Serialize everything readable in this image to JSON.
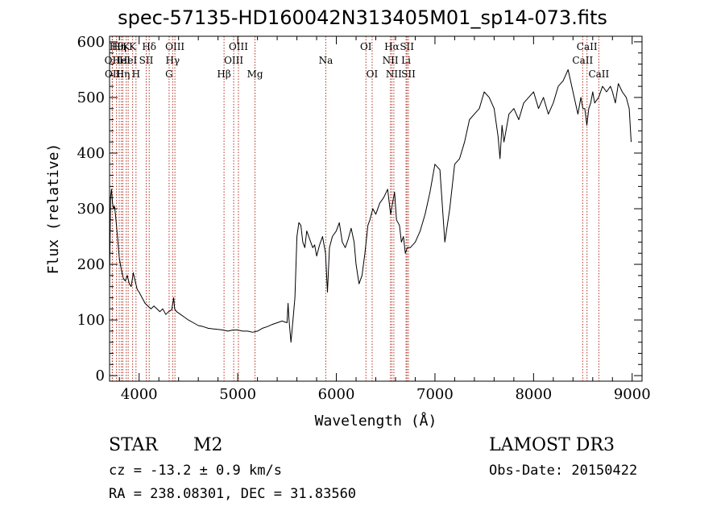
{
  "title": "spec-57135-HD160042N313405M01_sp14-073.fits",
  "info": {
    "class_label": "STAR",
    "subclass_label": "M2",
    "survey": "LAMOST DR3",
    "cz": "cz = -13.2 ± 0.9 km/s",
    "obs_date": "Obs-Date: 20150422",
    "coords": "RA = 238.08301, DEC =  31.83560"
  },
  "chart_data": {
    "type": "line",
    "title": "spec-57135-HD160042N313405M01_sp14-073.fits",
    "xlabel": "Wavelength (Å)",
    "ylabel": "Flux (relative)",
    "xlim": [
      3700,
      9100
    ],
    "ylim": [
      -10,
      610
    ],
    "xticks": [
      4000,
      5000,
      6000,
      7000,
      8000,
      9000
    ],
    "yticks": [
      0,
      100,
      200,
      300,
      400,
      500,
      600
    ],
    "line_color": "#000000",
    "marker_color": "#b03020",
    "series": [
      {
        "x": [
          3700,
          3710,
          3720,
          3730,
          3740,
          3750,
          3760,
          3770,
          3780,
          3790,
          3800,
          3820,
          3840,
          3860,
          3880,
          3900,
          3920,
          3940,
          3960,
          3980,
          4000,
          4030,
          4060,
          4090,
          4120,
          4150,
          4180,
          4210,
          4240,
          4270,
          4300,
          4330,
          4350,
          4360,
          4380,
          4420,
          4460,
          4500,
          4550,
          4600,
          4650,
          4700,
          4750,
          4800,
          4850,
          4900,
          4950,
          5000,
          5050,
          5100,
          5150,
          5200,
          5250,
          5300,
          5350,
          5400,
          5450,
          5500,
          5510,
          5520,
          5540,
          5560,
          5580,
          5600,
          5620,
          5640,
          5660,
          5680,
          5700,
          5720,
          5740,
          5760,
          5780,
          5800,
          5830,
          5860,
          5890,
          5910,
          5930,
          5960,
          6000,
          6030,
          6060,
          6090,
          6120,
          6150,
          6180,
          6200,
          6230,
          6260,
          6290,
          6320,
          6340,
          6370,
          6400,
          6440,
          6480,
          6520,
          6550,
          6570,
          6590,
          6610,
          6640,
          6660,
          6680,
          6700,
          6720,
          6750,
          6800,
          6850,
          6900,
          6950,
          7000,
          7050,
          7100,
          7150,
          7200,
          7250,
          7300,
          7350,
          7400,
          7450,
          7500,
          7550,
          7600,
          7640,
          7660,
          7680,
          7700,
          7750,
          7800,
          7850,
          7900,
          7950,
          8000,
          8050,
          8100,
          8150,
          8200,
          8250,
          8300,
          8350,
          8400,
          8450,
          8480,
          8500,
          8520,
          8540,
          8560,
          8580,
          8600,
          8620,
          8660,
          8700,
          8740,
          8780,
          8800,
          8830,
          8860,
          8900,
          8940,
          8970,
          8990
        ],
        "values": [
          160,
          320,
          335,
          310,
          300,
          305,
          290,
          270,
          250,
          230,
          210,
          190,
          175,
          170,
          180,
          165,
          160,
          185,
          170,
          155,
          150,
          140,
          130,
          125,
          120,
          125,
          120,
          115,
          120,
          110,
          115,
          118,
          140,
          120,
          115,
          110,
          105,
          100,
          95,
          90,
          88,
          85,
          84,
          83,
          82,
          80,
          82,
          82,
          80,
          80,
          78,
          80,
          85,
          88,
          92,
          95,
          98,
          95,
          130,
          100,
          60,
          100,
          140,
          250,
          275,
          270,
          240,
          230,
          260,
          250,
          240,
          230,
          235,
          215,
          235,
          250,
          220,
          150,
          230,
          250,
          260,
          275,
          240,
          230,
          245,
          265,
          240,
          200,
          165,
          180,
          220,
          270,
          280,
          300,
          290,
          310,
          320,
          335,
          290,
          310,
          330,
          280,
          270,
          240,
          250,
          220,
          230,
          230,
          240,
          260,
          290,
          330,
          380,
          370,
          240,
          300,
          380,
          390,
          420,
          460,
          470,
          480,
          510,
          500,
          480,
          430,
          390,
          450,
          420,
          470,
          480,
          460,
          490,
          500,
          510,
          480,
          500,
          470,
          490,
          520,
          530,
          550,
          510,
          470,
          500,
          480,
          480,
          450,
          480,
          490,
          510,
          490,
          500,
          520,
          510,
          520,
          510,
          490,
          525,
          510,
          500,
          480,
          420
        ]
      }
    ],
    "markers": [
      {
        "x": 3727,
        "label": "OII",
        "row": 2
      },
      {
        "x": 3730,
        "label": "OII",
        "row": 3
      },
      {
        "x": 3770,
        "label": "Hθ",
        "row": 1
      },
      {
        "x": 3798,
        "label": "Hη",
        "row": 1
      },
      {
        "x": 3820,
        "label": "HeI",
        "row": 2
      },
      {
        "x": 3835,
        "label": "Hη",
        "row": 3
      },
      {
        "x": 3869,
        "label": "K",
        "row": 1
      },
      {
        "x": 3889,
        "label": "HeI",
        "row": 2
      },
      {
        "x": 3934,
        "label": "K",
        "row": 1
      },
      {
        "x": 3968,
        "label": "H",
        "row": 3
      },
      {
        "x": 4072,
        "label": "SII",
        "row": 2
      },
      {
        "x": 4102,
        "label": "Hδ",
        "row": 1
      },
      {
        "x": 4304,
        "label": "G",
        "row": 3
      },
      {
        "x": 4340,
        "label": "Hγ",
        "row": 2
      },
      {
        "x": 4363,
        "label": "OIII",
        "row": 1
      },
      {
        "x": 4861,
        "label": "Hβ",
        "row": 3
      },
      {
        "x": 4959,
        "label": "OIII",
        "row": 2
      },
      {
        "x": 5007,
        "label": "OIII",
        "row": 1
      },
      {
        "x": 5175,
        "label": "Mg",
        "row": 3
      },
      {
        "x": 5893,
        "label": "Na",
        "row": 2
      },
      {
        "x": 6300,
        "label": "OI",
        "row": 1
      },
      {
        "x": 6363,
        "label": "OI",
        "row": 3
      },
      {
        "x": 6548,
        "label": "NII",
        "row": 2
      },
      {
        "x": 6563,
        "label": "Hα",
        "row": 1
      },
      {
        "x": 6583,
        "label": "NII",
        "row": 3
      },
      {
        "x": 6707,
        "label": "Li",
        "row": 2
      },
      {
        "x": 6716,
        "label": "SII",
        "row": 1
      },
      {
        "x": 6731,
        "label": "SII",
        "row": 3
      },
      {
        "x": 8498,
        "label": "CaII",
        "row": 2
      },
      {
        "x": 8542,
        "label": "CaII",
        "row": 1
      },
      {
        "x": 8662,
        "label": "CaII",
        "row": 3
      }
    ]
  }
}
